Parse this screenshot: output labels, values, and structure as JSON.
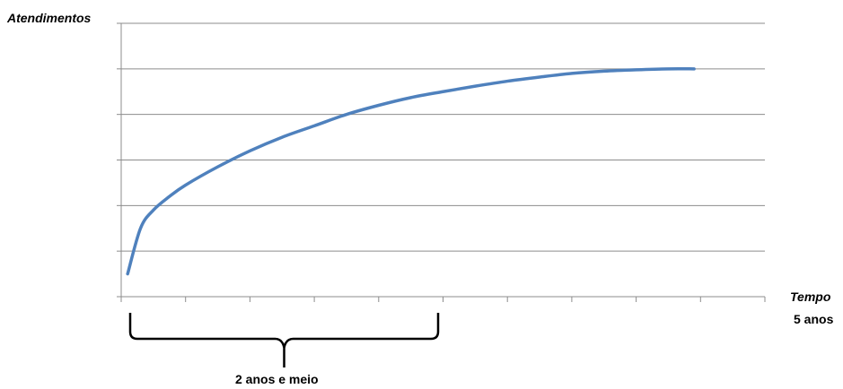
{
  "chart_data": {
    "type": "line",
    "title": "",
    "ylabel": "Atendimentos",
    "xlabel": "Tempo",
    "x_end_label": "5 anos",
    "annotation": "2 anos e meio",
    "xlim": [
      0,
      10
    ],
    "ylim": [
      0,
      6
    ],
    "y_gridlines": [
      1,
      2,
      3,
      4,
      5,
      6
    ],
    "grid": true,
    "legend": "none",
    "series": [
      {
        "color": "#4f81bd",
        "x": [
          0.1,
          0.3,
          0.5,
          0.75,
          1.0,
          1.5,
          2.0,
          2.5,
          3.0,
          3.5,
          4.0,
          4.5,
          5.0,
          5.5,
          6.0,
          6.5,
          7.0,
          7.5,
          8.0,
          8.5,
          8.9
        ],
        "y": [
          0.5,
          1.5,
          1.9,
          2.2,
          2.45,
          2.85,
          3.2,
          3.5,
          3.75,
          4.0,
          4.2,
          4.37,
          4.5,
          4.62,
          4.73,
          4.82,
          4.9,
          4.95,
          4.98,
          5.0,
          5.0
        ]
      }
    ]
  }
}
